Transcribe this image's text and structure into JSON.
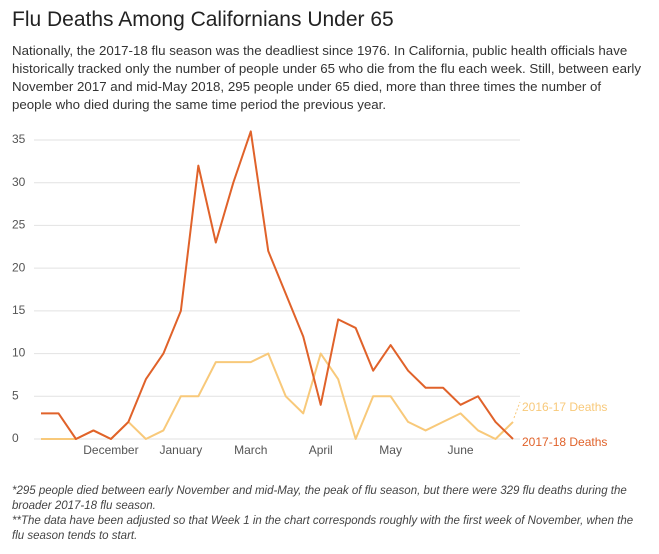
{
  "chart_data": {
    "type": "line",
    "title": "Flu Deaths Among Californians Under 65",
    "subtitle": "Nationally, the 2017-18 flu season was the deadliest since 1976. In California, public health officials have historically tracked only the number of people under 65 who die from the flu each week. Still, between early November 2017 and mid-May 2018, 295 people under 65 died, more than three times the number of people who died during the same time period the previous year.",
    "notes": [
      "*295 people died between early November and mid-May, the peak of flu season, but there were 329 flu deaths during the broader 2017-18 flu season.",
      "**The data have been adjusted so that Week 1 in the chart corresponds roughly with the first week of November, when the flu season tends to start."
    ],
    "categories": [
      null,
      null,
      null,
      null,
      "December",
      null,
      null,
      null,
      "January",
      null,
      null,
      null,
      "March",
      null,
      null,
      null,
      "April",
      null,
      null,
      null,
      "May",
      null,
      null,
      null,
      "June",
      null,
      null,
      null
    ],
    "series": [
      {
        "name": "2016-17 Deaths",
        "color": "#f8c97a",
        "values": [
          0,
          0,
          0,
          1,
          0,
          2,
          0,
          1,
          5,
          5,
          9,
          9,
          9,
          10,
          5,
          3,
          10,
          7,
          0,
          5,
          5,
          2,
          1,
          2,
          3,
          1,
          0,
          2
        ]
      },
      {
        "name": "2017-18 Deaths",
        "color": "#e0622a",
        "values": [
          3,
          3,
          0,
          1,
          0,
          2,
          7,
          10,
          15,
          32,
          23,
          30,
          36,
          22,
          17,
          12,
          4,
          14,
          13,
          8,
          11,
          8,
          6,
          6,
          4,
          5,
          2,
          0
        ]
      }
    ],
    "ylim": [
      0,
      37
    ],
    "yticks": [
      0,
      5,
      10,
      15,
      20,
      25,
      30,
      35
    ],
    "grid": true
  }
}
